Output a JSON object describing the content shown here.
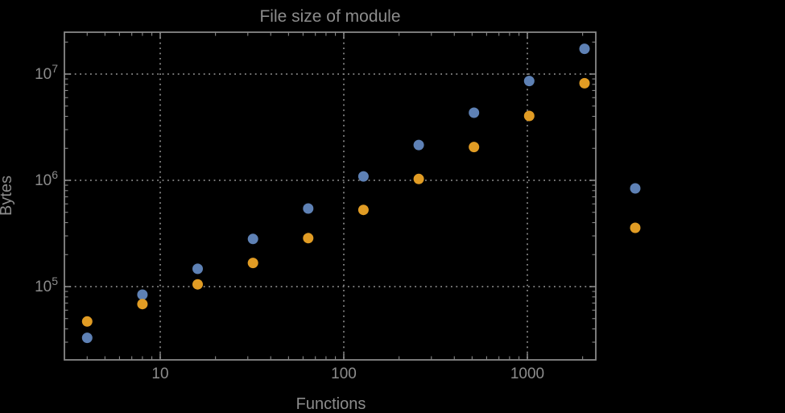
{
  "chart_data": {
    "type": "scatter",
    "title": "File size of module",
    "xlabel": "Functions",
    "ylabel": "Bytes",
    "x_scale": "log",
    "y_scale": "log",
    "grid": "dotted lines at major decades",
    "legend_position": "right-of-frame",
    "x_range": [
      3,
      2360
    ],
    "y_range": [
      20500,
      24800000
    ],
    "x_ticks": [
      {
        "value": 10,
        "label": "10"
      },
      {
        "value": 100,
        "label": "100"
      },
      {
        "value": 1000,
        "label": "1000"
      }
    ],
    "y_ticks": [
      {
        "value": 100000,
        "mantissa": "10",
        "exponent": "5"
      },
      {
        "value": 1000000,
        "mantissa": "10",
        "exponent": "6"
      },
      {
        "value": 10000000,
        "mantissa": "10",
        "exponent": "7"
      }
    ],
    "x": [
      4,
      8,
      16,
      32,
      64,
      128,
      256,
      512,
      1024,
      2048
    ],
    "series": [
      {
        "name": "blue-series",
        "color": "#5e81b5",
        "values": [
          33000,
          84000,
          147000,
          281000,
          543000,
          1090000,
          2150000,
          4330000,
          8600000,
          17300000
        ]
      },
      {
        "name": "orange-series",
        "color": "#e19c24",
        "values": [
          47000,
          68500,
          105000,
          167000,
          286000,
          527000,
          1030000,
          2060000,
          4040000,
          8200000
        ]
      }
    ],
    "legend": {
      "labels_visible": false,
      "markers": [
        {
          "color": "#5e81b5",
          "label": ""
        },
        {
          "color": "#e19c24",
          "label": ""
        }
      ]
    }
  },
  "colors": {
    "background": "#000000",
    "frame": "#878787",
    "grid": "#878787",
    "text": "#8c8c8c",
    "blue": "#5e81b5",
    "orange": "#e19c24"
  }
}
